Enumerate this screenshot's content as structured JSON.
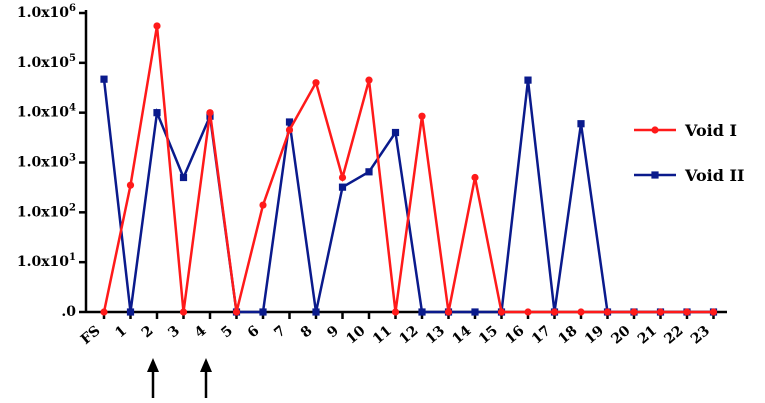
{
  "chart_data": {
    "type": "line",
    "scale": "log",
    "categories": [
      "FS",
      "1",
      "2",
      "3",
      "4",
      "5",
      "6",
      "7",
      "8",
      "9",
      "10",
      "11",
      "12",
      "13",
      "14",
      "15",
      "16",
      "17",
      "18",
      "19",
      "20",
      "21",
      "22",
      "23"
    ],
    "y_ticks": [
      ".0",
      "1.0x10^1",
      "1.0x10^2",
      "1.0x10^3",
      "1.0x10^4",
      "1.0x10^5",
      "1.0x10^6"
    ],
    "ylim": [
      0,
      1000000
    ],
    "series": [
      {
        "name": "Void I",
        "color": "#ff1a1a",
        "marker": "circle",
        "values": [
          0,
          350,
          550000,
          0,
          10000,
          0,
          140,
          4500,
          40000,
          500,
          45000,
          0,
          8500,
          0,
          500,
          0,
          0,
          0,
          0,
          0,
          0,
          0,
          0,
          0
        ]
      },
      {
        "name": "Void II",
        "color": "#0a1a8c",
        "marker": "square",
        "values": [
          47000,
          0,
          10000,
          500,
          8500,
          0,
          0,
          6500,
          0,
          320,
          650,
          4000,
          0,
          0,
          0,
          0,
          45000,
          0,
          6000,
          0,
          0,
          0,
          0,
          0
        ]
      }
    ],
    "legend_position": "right",
    "annotations": [
      {
        "type": "arrow",
        "category": "2"
      },
      {
        "type": "arrow",
        "category": "4"
      }
    ]
  }
}
